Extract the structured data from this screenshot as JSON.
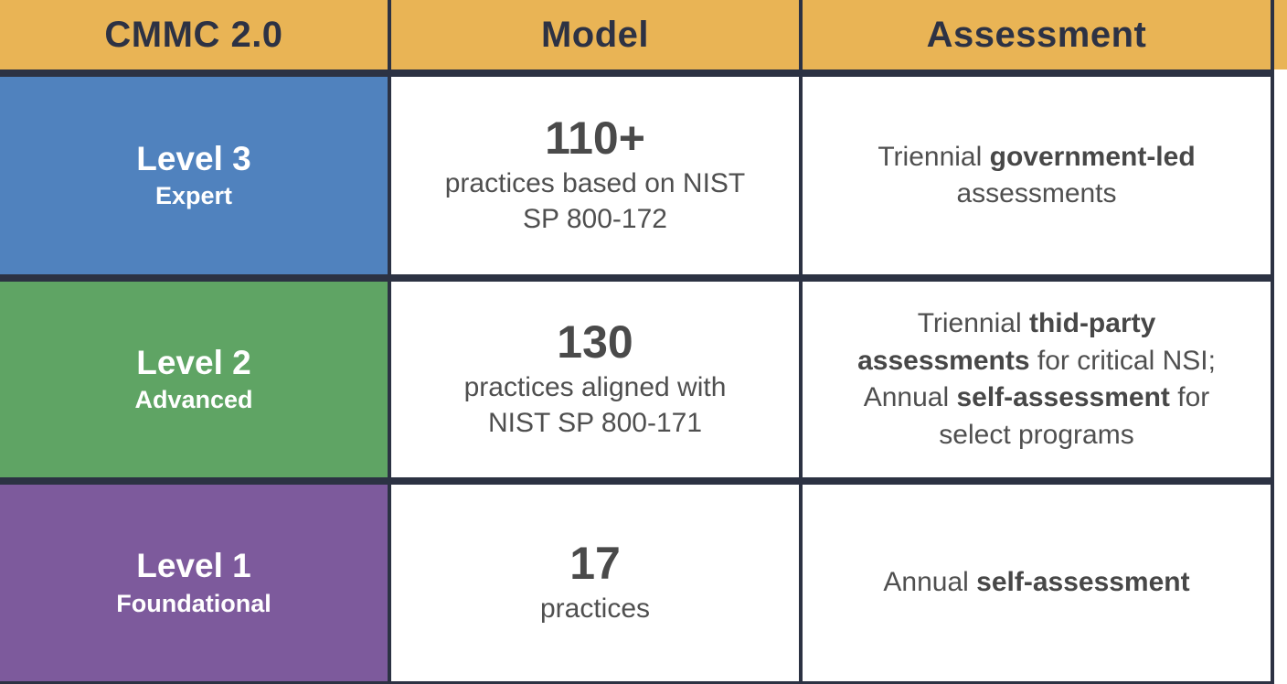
{
  "title": "CMMC 2.0 levels comparison table",
  "colors": {
    "header_bg": "#e9b455",
    "header_text": "#2d3244",
    "border": "#2c3243",
    "level3_bg": "#5082be",
    "level2_bg": "#5fa464",
    "level1_bg": "#7d5a9c",
    "level_text": "#ffffff",
    "body_text": "#4f4f4f",
    "cell_bg": "#ffffff"
  },
  "chart_data": {
    "type": "table",
    "columns": [
      "CMMC 2.0",
      "Model",
      "Assessment"
    ],
    "rows": [
      {
        "level": "Level 3",
        "name": "Expert",
        "practices_count": "110+",
        "model": "110+ practices based on NIST SP 800-172",
        "assessment": "Triennial government-led assessments"
      },
      {
        "level": "Level 2",
        "name": "Advanced",
        "practices_count": "130",
        "model": "130 practices aligned with NIST SP 800-171",
        "assessment": "Triennial thid-party assessments for critical NSI; Annual self-assessment for select programs"
      },
      {
        "level": "Level 1",
        "name": "Foundational",
        "practices_count": "17",
        "model": "17 practices",
        "assessment": "Annual self-assessment"
      }
    ]
  },
  "header": {
    "col1": "CMMC 2.0",
    "col2": "Model",
    "col3": "Assessment"
  },
  "rows": [
    {
      "level_title": "Level 3",
      "level_subtitle": "Expert",
      "model_number": "110+",
      "model_desc": "practices based on NIST SP 800-172",
      "assessment": {
        "seg0": "Triennial ",
        "seg1": "government-led",
        "seg2": " assessments"
      }
    },
    {
      "level_title": "Level 2",
      "level_subtitle": "Advanced",
      "model_number": "130",
      "model_desc": "practices aligned with NIST SP 800-171",
      "assessment": {
        "seg0": "Triennial ",
        "seg1": "thid-party assessments",
        "seg2": " for critical NSI; Annual ",
        "seg3": "self-assessment",
        "seg4": " for select programs"
      }
    },
    {
      "level_title": "Level 1",
      "level_subtitle": "Foundational",
      "model_number": "17",
      "model_desc": "practices",
      "assessment": {
        "seg0": "Annual ",
        "seg1": "self-assessment"
      }
    }
  ]
}
